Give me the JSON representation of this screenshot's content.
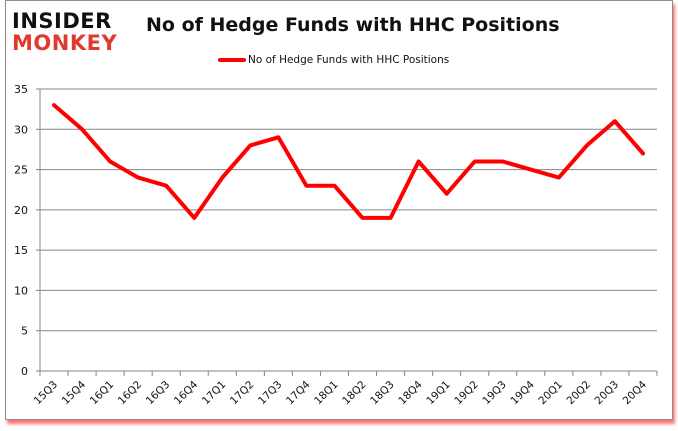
{
  "logo": {
    "line1": "INSIDER",
    "line2": "MONKEY"
  },
  "chart_data": {
    "type": "line",
    "title": "No of Hedge Funds with HHC Positions",
    "xlabel": "",
    "ylabel": "",
    "categories": [
      "15Q3",
      "15Q4",
      "16Q1",
      "16Q2",
      "16Q3",
      "16Q4",
      "17Q1",
      "17Q2",
      "17Q3",
      "17Q4",
      "18Q1",
      "18Q2",
      "18Q3",
      "18Q4",
      "19Q1",
      "19Q2",
      "19Q3",
      "19Q4",
      "20Q1",
      "20Q2",
      "20Q3",
      "20Q4"
    ],
    "series": [
      {
        "name": "No of Hedge Funds with HHC Positions",
        "color": "#ff0000",
        "values": [
          33,
          30,
          26,
          24,
          23,
          19,
          24,
          28,
          29,
          23,
          23,
          19,
          19,
          26,
          22,
          26,
          26,
          25,
          24,
          28,
          31,
          27
        ]
      }
    ],
    "ylim": [
      0,
      35
    ],
    "yticks": [
      0,
      5,
      10,
      15,
      20,
      25,
      30,
      35
    ],
    "grid": true,
    "legend_position": "top"
  }
}
